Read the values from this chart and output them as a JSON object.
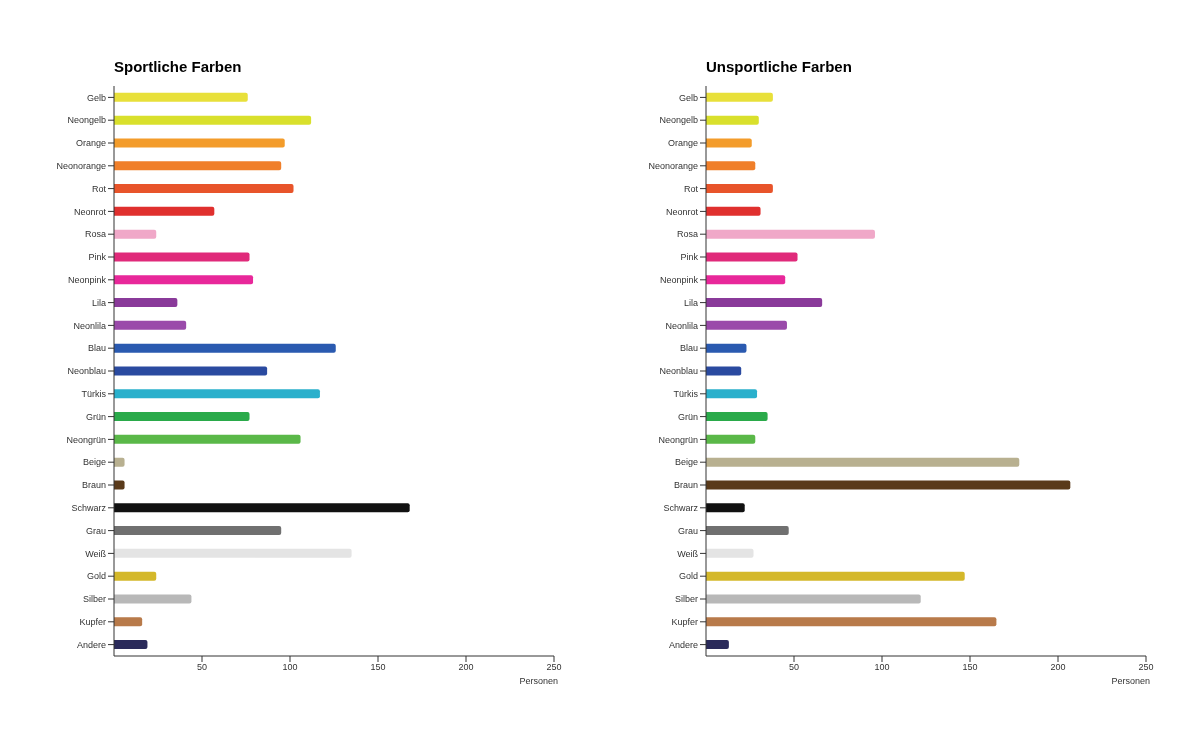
{
  "chart_data": [
    {
      "type": "bar",
      "orientation": "horizontal",
      "title": "Sportliche Farben",
      "xlabel": "Personen",
      "categories": [
        "Gelb",
        "Neongelb",
        "Orange",
        "Neonorange",
        "Rot",
        "Neonrot",
        "Rosa",
        "Pink",
        "Neonpink",
        "Lila",
        "Neonlila",
        "Blau",
        "Neonblau",
        "Türkis",
        "Grün",
        "Neongrün",
        "Beige",
        "Braun",
        "Schwarz",
        "Grau",
        "Weiß",
        "Gold",
        "Silber",
        "Kupfer",
        "Andere"
      ],
      "values": [
        76,
        112,
        97,
        95,
        102,
        57,
        24,
        77,
        79,
        36,
        41,
        126,
        87,
        117,
        77,
        106,
        6,
        6,
        168,
        95,
        135,
        24,
        44,
        16,
        19
      ],
      "colors": [
        "#e8e03a",
        "#d9e02c",
        "#f39c2b",
        "#f07f2a",
        "#e8542a",
        "#e0302e",
        "#f0a8c8",
        "#e02a7a",
        "#e8289a",
        "#8a3a9a",
        "#9a4aaa",
        "#2a5ab0",
        "#2a4aa0",
        "#2ab0cc",
        "#2aaa4a",
        "#5ab848",
        "#b8b090",
        "#5a3a1a",
        "#111111",
        "#707070",
        "#e4e4e4",
        "#d4b82a",
        "#b8b8b8",
        "#b87a4a",
        "#2a2a5a"
      ],
      "xlim": [
        0,
        250
      ],
      "xticks": [
        50,
        100,
        150,
        200,
        250
      ],
      "grid": false,
      "legend": false
    },
    {
      "type": "bar",
      "orientation": "horizontal",
      "title": "Unsportliche Farben",
      "xlabel": "Personen",
      "categories": [
        "Gelb",
        "Neongelb",
        "Orange",
        "Neonorange",
        "Rot",
        "Neonrot",
        "Rosa",
        "Pink",
        "Neonpink",
        "Lila",
        "Neonlila",
        "Blau",
        "Neonblau",
        "Türkis",
        "Grün",
        "Neongrün",
        "Beige",
        "Braun",
        "Schwarz",
        "Grau",
        "Weiß",
        "Gold",
        "Silber",
        "Kupfer",
        "Andere"
      ],
      "values": [
        38,
        30,
        26,
        28,
        38,
        31,
        96,
        52,
        45,
        66,
        46,
        23,
        20,
        29,
        35,
        28,
        178,
        207,
        22,
        47,
        27,
        147,
        122,
        165,
        13
      ],
      "colors": [
        "#e8e03a",
        "#d9e02c",
        "#f39c2b",
        "#f07f2a",
        "#e8542a",
        "#e0302e",
        "#f0a8c8",
        "#e02a7a",
        "#e8289a",
        "#8a3a9a",
        "#9a4aaa",
        "#2a5ab0",
        "#2a4aa0",
        "#2ab0cc",
        "#2aaa4a",
        "#5ab848",
        "#b8b090",
        "#5a3a1a",
        "#111111",
        "#707070",
        "#e4e4e4",
        "#d4b82a",
        "#b8b8b8",
        "#b87a4a",
        "#2a2a5a"
      ],
      "xlim": [
        0,
        250
      ],
      "xticks": [
        50,
        100,
        150,
        200,
        250
      ],
      "grid": false,
      "legend": false
    }
  ]
}
